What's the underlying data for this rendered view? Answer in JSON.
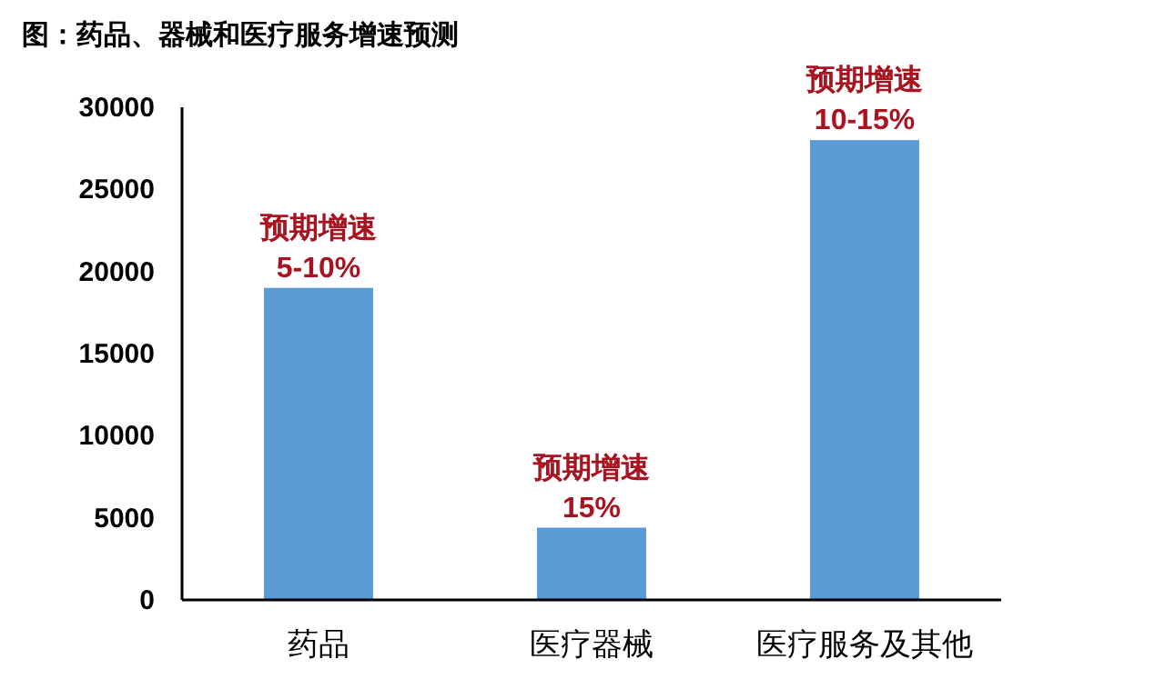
{
  "chart_data": {
    "type": "bar",
    "title": "图：药品、器械和医疗服务增速预测",
    "categories": [
      "药品",
      "医疗器械",
      "医疗服务及其他"
    ],
    "values": [
      19000,
      4400,
      28000
    ],
    "color": "#5b9bd5",
    "ylim": [
      0,
      30000
    ],
    "yticks": [
      0,
      5000,
      10000,
      15000,
      20000,
      25000,
      30000
    ],
    "grid": false,
    "annotations": [
      {
        "text": "预期增速\n5-10%",
        "x": "药品",
        "y": 19000
      },
      {
        "text": "预期增速\n15%",
        "x": "医疗器械",
        "y": 4400
      },
      {
        "text": "预期增速\n10-15%",
        "x": "医疗服务及其他",
        "y": 28000
      }
    ]
  }
}
